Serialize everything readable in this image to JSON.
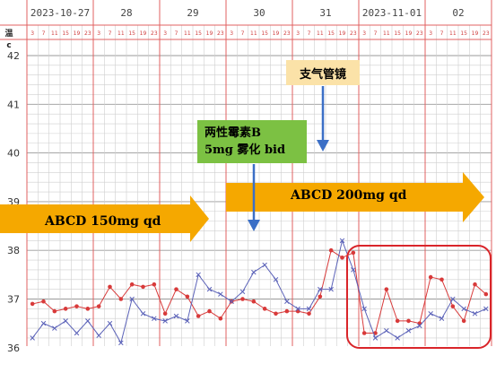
{
  "header": {
    "unit_label": "温\nc",
    "day_labels": [
      "2023-10-27",
      "28",
      "29",
      "30",
      "31",
      "2023-11-01",
      "02"
    ],
    "hour_labels": [
      "3",
      "7",
      "11",
      "15",
      "19",
      "23"
    ]
  },
  "annotations": {
    "drug1_line1": "两性霉素B",
    "drug1_line2": "5mg 雾化 bid",
    "bronchoscopy": "支气管镜",
    "arrow1_label": "ABCD 150mg qd",
    "arrow2_label": "ABCD 200mg qd"
  },
  "colors": {
    "grid_red": "#e06060",
    "grid_gray": "#cfcfcf",
    "series_red": "#d83a3a",
    "series_blue": "#5b62b8",
    "arrow_orange": "#f5a800",
    "arrow_blue": "#3b6fc6",
    "highlight_box": "#d9252a",
    "drug_box": "#7cc143",
    "bronch_box": "#fbe2a8"
  },
  "chart_data": {
    "type": "line",
    "title": "",
    "xlabel": "",
    "ylabel": "c",
    "ylim": [
      35.8,
      42.3
    ],
    "yticks": [
      36,
      37,
      38,
      39,
      40,
      41,
      42
    ],
    "x_slots_per_day": 6,
    "days": 7,
    "grid": true,
    "series": [
      {
        "color": "#d83a3a",
        "marker": "dot",
        "x": [
          0,
          1,
          2,
          3,
          4,
          5,
          6,
          7,
          8,
          9,
          10,
          11,
          12,
          13,
          14,
          15,
          16,
          17,
          18,
          19,
          20,
          21,
          22,
          23,
          24,
          25,
          26,
          27,
          28,
          29,
          30,
          31,
          32,
          33,
          34,
          35,
          36,
          37,
          38,
          39,
          40,
          41
        ],
        "values": [
          36.9,
          36.95,
          36.75,
          36.8,
          36.85,
          36.8,
          36.85,
          37.25,
          37.0,
          37.3,
          37.25,
          37.3,
          36.7,
          37.2,
          37.05,
          36.65,
          36.75,
          36.6,
          36.95,
          37.0,
          36.95,
          36.8,
          36.7,
          36.75,
          36.75,
          36.7,
          37.05,
          38.0,
          37.85,
          37.95,
          36.3,
          36.3,
          37.2,
          36.55,
          36.55,
          36.5,
          37.45,
          37.4,
          36.85,
          36.55,
          37.3,
          37.1
        ]
      },
      {
        "color": "#5b62b8",
        "marker": "x",
        "x": [
          0,
          1,
          2,
          3,
          4,
          5,
          6,
          7,
          8,
          9,
          10,
          11,
          12,
          13,
          14,
          15,
          16,
          17,
          18,
          19,
          20,
          21,
          22,
          23,
          24,
          25,
          26,
          27,
          28,
          29,
          30,
          31,
          32,
          33,
          34,
          35,
          36,
          37,
          38,
          39,
          40,
          41
        ],
        "values": [
          36.2,
          36.5,
          36.4,
          36.55,
          36.3,
          36.55,
          36.25,
          36.5,
          36.1,
          37.0,
          36.7,
          36.6,
          36.55,
          36.65,
          36.55,
          37.5,
          37.2,
          37.1,
          36.95,
          37.15,
          37.55,
          37.7,
          37.4,
          36.95,
          36.8,
          36.8,
          37.2,
          37.2,
          38.2,
          37.6,
          36.8,
          36.2,
          36.35,
          36.2,
          36.35,
          36.45,
          36.7,
          36.6,
          37.0,
          36.8,
          36.7,
          36.8
        ]
      }
    ]
  }
}
